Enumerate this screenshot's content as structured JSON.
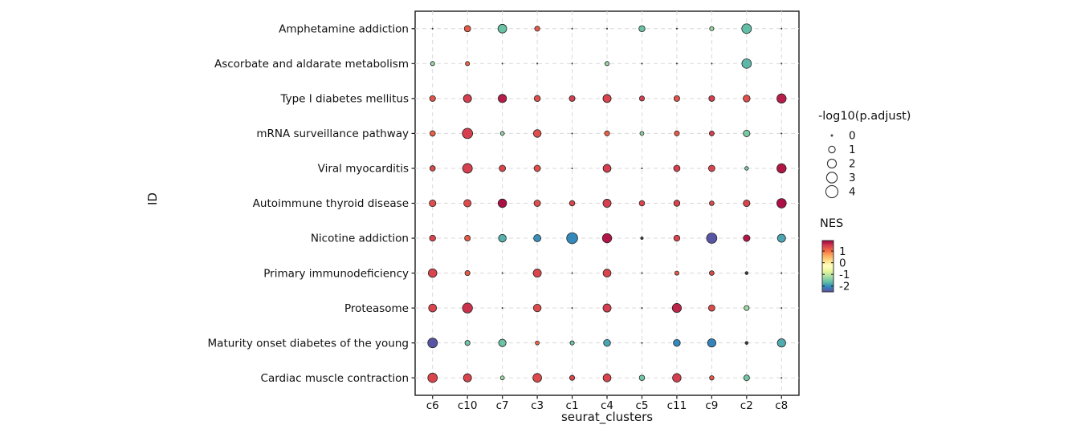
{
  "figure": {
    "y_axis_title": "ID",
    "x_axis_title": "seurat_clusters",
    "size_legend_title": "-log10(p.adjust)",
    "color_legend_title": "NES"
  },
  "chart_data": {
    "type": "scatter",
    "subtype": "dotplot-bubble",
    "title": "",
    "xlabel": "seurat_clusters",
    "ylabel": "ID",
    "grid": "dashed",
    "legend_position": "right",
    "size_variable": "-log10(p.adjust)",
    "color_variable": "NES",
    "size_legend_values": [
      0,
      1,
      2,
      3,
      4
    ],
    "color_legend_ticks": [
      1,
      0,
      -1,
      -2
    ],
    "color_domain": [
      -2.5,
      1.9
    ],
    "spectral_palette_low_to_high": [
      "#5e4fa2",
      "#3288bd",
      "#66c2a5",
      "#abdda4",
      "#e6f598",
      "#ffffbf",
      "#fee08b",
      "#fdae61",
      "#f46d43",
      "#d53e4f",
      "#9e0142"
    ],
    "grid_color": "#d9d9d9",
    "panel_border_color": "#1a1a1a",
    "x_categories": [
      "c6",
      "c10",
      "c7",
      "c3",
      "c1",
      "c4",
      "c5",
      "c11",
      "c9",
      "c2",
      "c8"
    ],
    "y_categories": [
      "Amphetamine addiction",
      "Ascorbate and aldarate metabolism",
      "Type I diabetes mellitus",
      "mRNA surveillance pathway",
      "Viral myocarditis",
      "Autoimmune thyroid disease",
      "Nicotine addiction",
      "Primary immunodeficiency",
      "Proteasome",
      "Maturity onset diabetes of the young",
      "Cardiac muscle contraction"
    ],
    "series": [
      {
        "pathway": "Amphetamine addiction",
        "neg_log10_padj": [
          0,
          0.9,
          1.9,
          0.5,
          0,
          0,
          0.8,
          0,
          0.3,
          2.4,
          0
        ],
        "nes": [
          0,
          1.2,
          -1.6,
          1.2,
          0,
          0,
          -1.6,
          0,
          -1.3,
          -1.65,
          0
        ]
      },
      {
        "pathway": "Ascorbate and aldarate metabolism",
        "neg_log10_padj": [
          0.3,
          0.3,
          0,
          0,
          0,
          0.3,
          0,
          0,
          0,
          2.3,
          0
        ],
        "nes": [
          -1.3,
          1.1,
          0,
          0,
          0,
          -1.3,
          0,
          0,
          0,
          -1.7,
          0
        ]
      },
      {
        "pathway": "Type I diabetes mellitus",
        "neg_log10_padj": [
          0.7,
          1.6,
          1.7,
          0.8,
          0.7,
          1.6,
          0.5,
          0.7,
          0.7,
          1.1,
          2.2
        ],
        "nes": [
          1.25,
          1.45,
          1.7,
          1.3,
          1.45,
          1.4,
          1.45,
          1.25,
          1.45,
          1.3,
          1.7
        ]
      },
      {
        "pathway": "mRNA surveillance pathway",
        "neg_log10_padj": [
          0.6,
          2.8,
          0.25,
          1.4,
          0,
          0.5,
          0.25,
          0.5,
          0.45,
          1.0,
          0
        ],
        "nes": [
          1.15,
          1.45,
          -1.35,
          1.3,
          0,
          1.15,
          -1.35,
          1.2,
          1.45,
          -1.5,
          0
        ]
      },
      {
        "pathway": "Viral myocarditis",
        "neg_log10_padj": [
          0.6,
          2.4,
          0.9,
          0.9,
          0,
          1.5,
          0,
          0.9,
          0.9,
          0.2,
          2.2
        ],
        "nes": [
          1.35,
          1.45,
          1.4,
          1.3,
          0,
          1.45,
          0,
          1.45,
          1.4,
          -1.5,
          1.75
        ]
      },
      {
        "pathway": "Autoimmune thyroid disease",
        "neg_log10_padj": [
          1.0,
          1.3,
          1.8,
          0.9,
          0.6,
          1.6,
          0.6,
          0.8,
          0.4,
          1.0,
          2.3
        ],
        "nes": [
          1.3,
          1.35,
          1.8,
          1.3,
          1.4,
          1.45,
          1.4,
          1.4,
          1.35,
          1.4,
          1.8
        ]
      },
      {
        "pathway": "Nicotine addiction",
        "neg_log10_padj": [
          0.8,
          0.7,
          1.4,
          1.2,
          3.2,
          2.2,
          0.1,
          0.8,
          2.8,
          1.0,
          1.6
        ],
        "nes": [
          1.4,
          1.2,
          -1.75,
          -2.0,
          -2.05,
          1.75,
          0,
          1.4,
          -2.45,
          1.75,
          -1.85
        ]
      },
      {
        "pathway": "Primary immunodeficiency",
        "neg_log10_padj": [
          1.8,
          0.5,
          0,
          1.6,
          0,
          1.5,
          0,
          0.3,
          0.4,
          0.15,
          0
        ],
        "nes": [
          1.4,
          1.2,
          0,
          1.4,
          0,
          1.4,
          0,
          1.2,
          1.35,
          -1.3,
          0
        ]
      },
      {
        "pathway": "Proteasome",
        "neg_log10_padj": [
          1.5,
          2.6,
          0,
          1.4,
          0,
          1.6,
          0,
          2.1,
          0.9,
          0.5,
          0
        ],
        "nes": [
          1.4,
          1.55,
          0,
          1.35,
          0,
          1.45,
          0,
          1.65,
          1.35,
          -1.25,
          0
        ]
      },
      {
        "pathway": "Maturity onset diabetes of the young",
        "neg_log10_padj": [
          2.4,
          0.5,
          1.3,
          0.25,
          0.3,
          1.1,
          0,
          1.1,
          1.7,
          0.15,
          1.7
        ],
        "nes": [
          -2.45,
          -1.55,
          -1.6,
          1.1,
          -1.55,
          -1.85,
          0,
          -2.05,
          -2.1,
          -1.4,
          -1.8
        ]
      },
      {
        "pathway": "Cardiac muscle contraction",
        "neg_log10_padj": [
          2.3,
          1.6,
          0.25,
          1.9,
          0.5,
          1.5,
          0.6,
          1.8,
          0.35,
          0.7,
          0
        ],
        "nes": [
          1.4,
          1.4,
          -1.25,
          1.35,
          1.4,
          1.4,
          -1.55,
          1.45,
          1.2,
          -1.55,
          0
        ]
      }
    ]
  }
}
